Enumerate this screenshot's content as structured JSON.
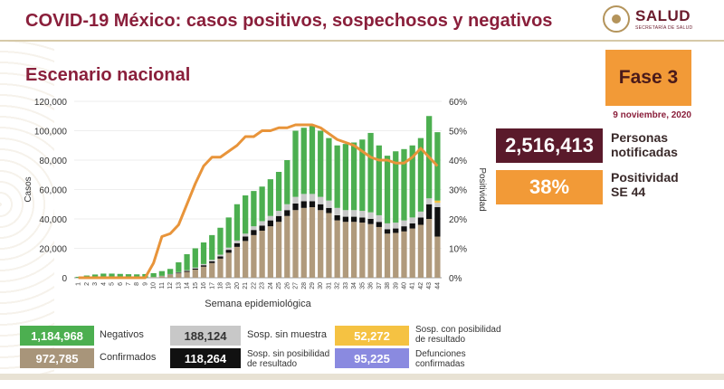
{
  "header": {
    "title": "COVID-19 México: casos positivos, sospechosos y negativos",
    "logo_text": "SALUD",
    "logo_subtext": "SECRETARÍA DE SALUD"
  },
  "subtitle": "Escenario nacional",
  "fase": "Fase 3",
  "date": "9 noviembre, 2020",
  "stats": {
    "notificadas_value": "2,516,413",
    "notificadas_label1": "Personas",
    "notificadas_label2": "notificadas",
    "positividad_value": "38%",
    "positividad_label1": "Positividad",
    "positividad_label2": "SE 44"
  },
  "legend": {
    "negativos_value": "1,184,968",
    "negativos_label": "Negativos",
    "confirmados_value": "972,785",
    "confirmados_label": "Confirmados",
    "sosp_sin_muestra_value": "188,124",
    "sosp_sin_muestra_label": "Sosp. sin muestra",
    "sosp_sin_posibilidad_value": "118,264",
    "sosp_sin_posibilidad_label1": "Sosp. sin posibilidad",
    "sosp_sin_posibilidad_label2": "de resultado",
    "sosp_con_posibilidad_value": "52,272",
    "sosp_con_posibilidad_label1": "Sosp. con posibilidad",
    "sosp_con_posibilidad_label2": "de resultado",
    "defunciones_value": "95,225",
    "defunciones_label1": "Defunciones",
    "defunciones_label2": "confirmadas"
  },
  "colors": {
    "confirmados": "#b09a7c",
    "sin_posibilidad": "#111111",
    "sin_muestra": "#c8c8c8",
    "con_posibilidad": "#f5c242",
    "negativos": "#4caf50",
    "positividad": "#e8943a",
    "title": "#8a1f3b"
  },
  "chart_data": {
    "type": "bar",
    "stacked": true,
    "xlabel": "Semana epidemiológica",
    "ylabel": "Casos",
    "y2label": "Positividad",
    "ylim": [
      0,
      120000
    ],
    "yticks": [
      "0",
      "20,000",
      "40,000",
      "60,000",
      "80,000",
      "100,000",
      "120,000"
    ],
    "y2lim": [
      0,
      60
    ],
    "y2ticks": [
      "0%",
      "10%",
      "20%",
      "30%",
      "40%",
      "50%",
      "60%"
    ],
    "categories": [
      "1",
      "2",
      "3",
      "4",
      "5",
      "6",
      "7",
      "8",
      "9",
      "10",
      "11",
      "12",
      "13",
      "14",
      "15",
      "16",
      "17",
      "18",
      "19",
      "20",
      "21",
      "22",
      "23",
      "24",
      "25",
      "26",
      "27",
      "28",
      "29",
      "30",
      "31",
      "32",
      "33",
      "34",
      "35",
      "36",
      "37",
      "38",
      "39",
      "40",
      "41",
      "42",
      "43",
      "44"
    ],
    "series": [
      {
        "name": "Confirmados",
        "values": [
          0,
          0,
          0,
          0,
          0,
          0,
          0,
          0,
          100,
          400,
          1000,
          2000,
          3000,
          4000,
          5500,
          7500,
          10000,
          13000,
          17000,
          21000,
          25000,
          29000,
          32000,
          35000,
          38000,
          42000,
          46000,
          47500,
          48000,
          46000,
          44000,
          39000,
          38000,
          38000,
          37500,
          36500,
          34500,
          30000,
          30500,
          31500,
          33500,
          36000,
          40000,
          28000
        ]
      },
      {
        "name": "Sosp. sin posibilidad de resultado",
        "values": [
          0,
          0,
          0,
          0,
          0,
          0,
          0,
          0,
          0,
          0,
          100,
          200,
          400,
          600,
          800,
          1000,
          1200,
          1500,
          2000,
          2500,
          3000,
          3500,
          3500,
          4000,
          4000,
          4000,
          4500,
          4500,
          4000,
          4000,
          3500,
          3500,
          3500,
          3500,
          3500,
          3500,
          3500,
          3000,
          3000,
          3500,
          3500,
          5000,
          10000,
          20000
        ]
      },
      {
        "name": "Sosp. sin muestra",
        "values": [
          0,
          0,
          0,
          0,
          0,
          0,
          0,
          0,
          0,
          100,
          200,
          300,
          400,
          500,
          600,
          800,
          1000,
          1200,
          1500,
          1800,
          2000,
          2500,
          3000,
          3000,
          3500,
          4000,
          4500,
          5000,
          5000,
          5000,
          5000,
          5000,
          4500,
          4500,
          4500,
          4500,
          4500,
          4000,
          4000,
          4000,
          4000,
          4000,
          4000,
          3000
        ]
      },
      {
        "name": "Sosp. con posibilidad de resultado",
        "values": [
          0,
          0,
          0,
          0,
          0,
          0,
          0,
          0,
          0,
          0,
          0,
          0,
          0,
          0,
          0,
          0,
          0,
          0,
          0,
          0,
          0,
          0,
          0,
          0,
          0,
          0,
          0,
          0,
          0,
          0,
          0,
          0,
          0,
          0,
          0,
          0,
          0,
          0,
          0,
          0,
          0,
          0,
          0,
          1500
        ]
      },
      {
        "name": "Negativos",
        "values": [
          600,
          1500,
          2200,
          2800,
          2800,
          2600,
          2400,
          2300,
          2400,
          2600,
          3200,
          3500,
          6700,
          10900,
          13100,
          14700,
          16800,
          18300,
          20500,
          24700,
          26000,
          24000,
          23500,
          25000,
          26500,
          30000,
          45000,
          45000,
          47000,
          45000,
          42500,
          42500,
          45000,
          46000,
          48500,
          54000,
          47500,
          46000,
          48500,
          48500,
          49000,
          50000,
          56000,
          46500
        ]
      }
    ],
    "line": {
      "name": "Positividad",
      "values": [
        0,
        0,
        0,
        0,
        0,
        0,
        0,
        0,
        0,
        5,
        14,
        15,
        18,
        25,
        32,
        38,
        41,
        41,
        43,
        45,
        48,
        48,
        50,
        50,
        51,
        51,
        52,
        52,
        52,
        51,
        49,
        47,
        46,
        45,
        43,
        41,
        40,
        40,
        39,
        39,
        41,
        44,
        41,
        38
      ]
    }
  }
}
